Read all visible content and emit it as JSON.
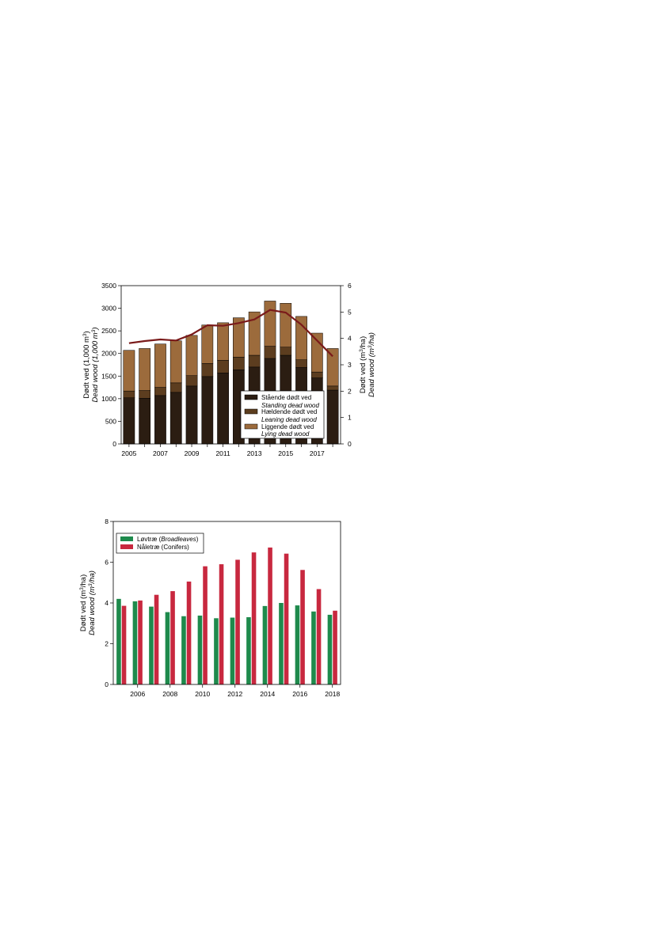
{
  "chart_data": [
    {
      "type": "bar",
      "stacked": true,
      "categories": [
        "2005",
        "2006",
        "2007",
        "2008",
        "2009",
        "2010",
        "2011",
        "2012",
        "2013",
        "2014",
        "2015",
        "2016",
        "2017",
        "2018"
      ],
      "x_tick_labels": [
        "2005",
        "2007",
        "2009",
        "2011",
        "2013",
        "2015",
        "2017"
      ],
      "series": [
        {
          "name": "Stående dødt ved",
          "name_en": "Standing dead wood",
          "color": "#2b1d12",
          "values": [
            1020,
            1010,
            1070,
            1140,
            1280,
            1490,
            1570,
            1640,
            1700,
            1890,
            1960,
            1690,
            1460,
            1190
          ]
        },
        {
          "name": "Hældende dødt ved",
          "name_en": "Leaning dead wood",
          "color": "#5c3d1f",
          "values": [
            150,
            170,
            180,
            210,
            230,
            290,
            280,
            280,
            260,
            270,
            180,
            170,
            130,
            90
          ]
        },
        {
          "name": "Liggende dødt ved",
          "name_en": "Lying dead wood",
          "color": "#9c6b3c",
          "values": [
            900,
            930,
            960,
            930,
            890,
            850,
            830,
            870,
            960,
            1000,
            970,
            960,
            860,
            830
          ]
        }
      ],
      "line": {
        "color": "#7a1a1a",
        "values": [
          3.82,
          3.9,
          3.96,
          3.92,
          4.15,
          4.5,
          4.48,
          4.58,
          4.72,
          5.08,
          4.98,
          4.52,
          3.92,
          3.32
        ]
      },
      "ylabel": "Dødt ved (1,000 m3)",
      "ylabel_en": "Dead wood (1,000 m3)",
      "y2label": "Dødt ved (m3/ha)",
      "y2label_en": "Dead wood (m3/ha)",
      "ylim": [
        0,
        3500
      ],
      "y_ticks": [
        0,
        500,
        1000,
        1500,
        2000,
        2500,
        3000,
        3500
      ],
      "y2lim": [
        0,
        6
      ],
      "y2_ticks": [
        0,
        1,
        2,
        3,
        4,
        5,
        6
      ],
      "legend_position": "bottom-right",
      "grid": false
    },
    {
      "type": "bar",
      "categories": [
        "2005",
        "2006",
        "2007",
        "2008",
        "2009",
        "2010",
        "2011",
        "2012",
        "2013",
        "2014",
        "2015",
        "2016",
        "2017",
        "2018"
      ],
      "x_tick_labels": [
        "2006",
        "2008",
        "2010",
        "2012",
        "2014",
        "2016",
        "2018"
      ],
      "series": [
        {
          "name": "Løvtræ",
          "name_en": "Broadleaves",
          "color": "#1e8a4c",
          "values": [
            4.2,
            4.08,
            3.82,
            3.55,
            3.35,
            3.38,
            3.25,
            3.28,
            3.3,
            3.85,
            4.0,
            3.88,
            3.58,
            3.42
          ]
        },
        {
          "name": "Nåletræ",
          "name_en": "Conifers",
          "color": "#c8283f",
          "values": [
            3.86,
            4.12,
            4.4,
            4.58,
            5.05,
            5.8,
            5.9,
            6.12,
            6.48,
            6.72,
            6.42,
            5.62,
            4.68,
            3.62
          ]
        }
      ],
      "ylabel": "Dødt ved (m3/ha)",
      "ylabel_en": "Dead wood (m3/ha)",
      "ylim": [
        0,
        8
      ],
      "y_ticks": [
        0,
        2,
        4,
        6,
        8
      ],
      "legend_position": "top-left",
      "grid": false
    }
  ]
}
